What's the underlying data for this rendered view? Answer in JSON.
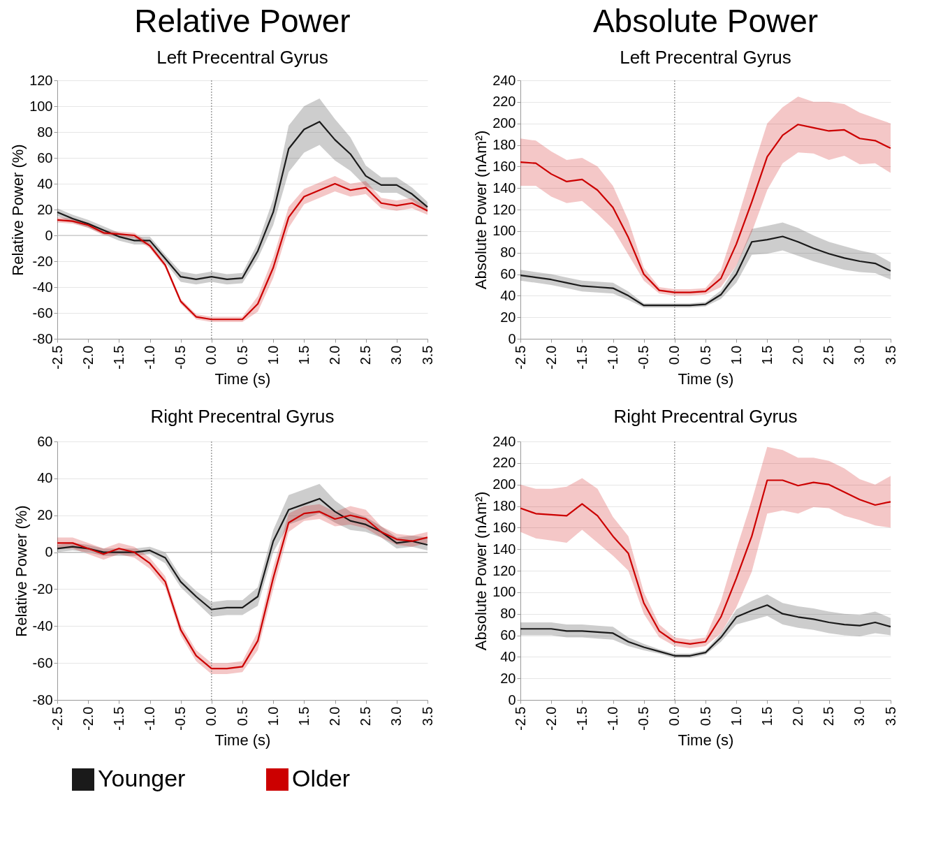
{
  "chart_data": [
    {
      "type": "line",
      "title": "Relative Power",
      "subtitle": "Left Precentral Gyrus",
      "xlabel": "Time (s)",
      "ylabel": "Relative Power (%)",
      "x": [
        -2.5,
        -2.25,
        -2,
        -1.75,
        -1.5,
        -1.25,
        -1,
        -0.75,
        -0.5,
        -0.25,
        0,
        0.25,
        0.5,
        0.75,
        1,
        1.25,
        1.5,
        1.75,
        2,
        2.25,
        2.5,
        2.75,
        3,
        3.25,
        3.5
      ],
      "series": [
        {
          "name": "Younger",
          "color": "#1a1a1a",
          "values": [
            18,
            13,
            9,
            4,
            -1,
            -4,
            -4,
            -18,
            -32,
            -34,
            -32,
            -34,
            -33,
            -12,
            18,
            67,
            82,
            88,
            74,
            63,
            46,
            39,
            39,
            32,
            22
          ],
          "upper": [
            21,
            16,
            12,
            7,
            2,
            -1,
            -1,
            -15,
            -28,
            -30,
            -28,
            -30,
            -29,
            -6,
            28,
            85,
            100,
            106,
            90,
            76,
            54,
            45,
            45,
            37,
            26
          ],
          "lower": [
            15,
            10,
            6,
            1,
            -4,
            -7,
            -7,
            -21,
            -36,
            -38,
            -36,
            -38,
            -37,
            -18,
            8,
            49,
            64,
            70,
            58,
            50,
            38,
            33,
            33,
            27,
            18
          ]
        },
        {
          "name": "Older",
          "color": "#cc0000",
          "values": [
            12,
            11,
            8,
            2,
            1,
            0,
            -8,
            -23,
            -51,
            -63,
            -65,
            -65,
            -65,
            -53,
            -25,
            14,
            30,
            35,
            40,
            35,
            37,
            25,
            23,
            25,
            19
          ],
          "upper": [
            14,
            13,
            10,
            4,
            3,
            2,
            -6,
            -21,
            -49,
            -61,
            -63,
            -63,
            -63,
            -47,
            -17,
            22,
            36,
            41,
            46,
            40,
            42,
            29,
            27,
            29,
            22
          ],
          "lower": [
            10,
            9,
            6,
            0,
            -1,
            -2,
            -10,
            -25,
            -53,
            -65,
            -67,
            -67,
            -67,
            -59,
            -33,
            6,
            24,
            29,
            34,
            30,
            32,
            21,
            19,
            21,
            16
          ]
        }
      ],
      "xlim": [
        -2.5,
        3.5
      ],
      "xticks": [
        -2.5,
        {
          "value": -2,
          "label": "-2.0"
        },
        -1.5,
        {
          "value": -1,
          "label": "-1.0"
        },
        -0.5,
        {
          "value": 0,
          "label": "0.0"
        },
        0.5,
        {
          "value": 1,
          "label": "1.0"
        },
        1.5,
        {
          "value": 2,
          "label": "2.0"
        },
        2.5,
        {
          "value": 3,
          "label": "3.0"
        },
        3.5
      ],
      "ylim": [
        -80,
        120
      ],
      "yticks": [
        -80,
        -60,
        -40,
        -20,
        0,
        20,
        40,
        60,
        80,
        100,
        120
      ],
      "ref_lines": [
        {
          "axis": "x",
          "value": 0,
          "color": "#888888",
          "line_style": "dotted"
        },
        {
          "axis": "y",
          "value": 0,
          "color": "#bbbbbb",
          "line_style": "solid"
        }
      ],
      "grid": "y",
      "legend": "bottom"
    },
    {
      "type": "line",
      "title": "Absolute Power",
      "subtitle": "Left Precentral Gyrus",
      "xlabel": "Time (s)",
      "ylabel": "Absolute Power (nAm²)",
      "x": [
        -2.5,
        -2.25,
        -2,
        -1.75,
        -1.5,
        -1.25,
        -1,
        -0.75,
        -0.5,
        -0.25,
        0,
        0.25,
        0.5,
        0.75,
        1,
        1.25,
        1.5,
        1.75,
        2,
        2.25,
        2.5,
        2.75,
        3,
        3.25,
        3.5
      ],
      "series": [
        {
          "name": "Younger",
          "color": "#1a1a1a",
          "values": [
            59,
            57,
            55,
            52,
            49,
            48,
            47,
            40,
            31,
            31,
            31,
            31,
            32,
            41,
            60,
            90,
            92,
            95,
            90,
            84,
            79,
            75,
            72,
            70,
            63
          ],
          "upper": [
            64,
            62,
            60,
            57,
            54,
            53,
            52,
            44,
            33,
            33,
            33,
            33,
            34,
            45,
            68,
            102,
            105,
            108,
            103,
            96,
            90,
            86,
            82,
            79,
            71
          ],
          "lower": [
            54,
            52,
            50,
            47,
            44,
            43,
            42,
            36,
            29,
            29,
            29,
            29,
            30,
            37,
            52,
            78,
            79,
            82,
            77,
            72,
            68,
            64,
            62,
            61,
            55
          ]
        },
        {
          "name": "Older",
          "color": "#cc0000",
          "values": [
            164,
            163,
            153,
            146,
            148,
            138,
            122,
            94,
            60,
            45,
            43,
            43,
            44,
            56,
            88,
            127,
            169,
            189,
            199,
            196,
            193,
            194,
            186,
            184,
            177
          ],
          "upper": [
            186,
            184,
            174,
            166,
            168,
            160,
            142,
            110,
            66,
            48,
            46,
            46,
            47,
            64,
            108,
            155,
            200,
            215,
            225,
            220,
            220,
            218,
            210,
            205,
            200
          ],
          "lower": [
            142,
            142,
            132,
            126,
            128,
            116,
            102,
            78,
            54,
            42,
            40,
            40,
            41,
            48,
            68,
            99,
            138,
            163,
            173,
            172,
            166,
            170,
            162,
            163,
            154
          ]
        }
      ],
      "xlim": [
        -2.5,
        3.5
      ],
      "xticks": [
        -2.5,
        {
          "value": -2,
          "label": "-2.0"
        },
        -1.5,
        {
          "value": -1,
          "label": "-1.0"
        },
        -0.5,
        {
          "value": 0,
          "label": "0.0"
        },
        0.5,
        {
          "value": 1,
          "label": "1.0"
        },
        1.5,
        {
          "value": 2,
          "label": "2.0"
        },
        2.5,
        {
          "value": 3,
          "label": "3.0"
        },
        3.5
      ],
      "ylim": [
        0,
        240
      ],
      "yticks": [
        0,
        20,
        40,
        60,
        80,
        100,
        120,
        140,
        160,
        180,
        200,
        220,
        240
      ],
      "ref_lines": [
        {
          "axis": "x",
          "value": 0,
          "color": "#888888",
          "line_style": "dotted"
        }
      ],
      "grid": "y",
      "legend": "bottom"
    },
    {
      "type": "line",
      "subtitle": "Right Precentral Gyrus",
      "xlabel": "Time (s)",
      "ylabel": "Relative Power (%)",
      "x": [
        -2.5,
        -2.25,
        -2,
        -1.75,
        -1.5,
        -1.25,
        -1,
        -0.75,
        -0.5,
        -0.25,
        0,
        0.25,
        0.5,
        0.75,
        1,
        1.25,
        1.5,
        1.75,
        2,
        2.25,
        2.5,
        2.75,
        3,
        3.25,
        3.5
      ],
      "series": [
        {
          "name": "Younger",
          "color": "#1a1a1a",
          "values": [
            2,
            3,
            2,
            0,
            0,
            0,
            1,
            -3,
            -16,
            -24,
            -31,
            -30,
            -30,
            -24,
            6,
            23,
            26,
            29,
            22,
            17,
            15,
            11,
            5,
            6,
            4
          ],
          "upper": [
            4,
            5,
            4,
            2,
            2,
            2,
            3,
            0,
            -13,
            -21,
            -27,
            -26,
            -26,
            -19,
            12,
            31,
            34,
            37,
            28,
            22,
            19,
            14,
            8,
            9,
            8
          ],
          "lower": [
            0,
            1,
            0,
            -2,
            -2,
            -2,
            -1,
            -6,
            -19,
            -27,
            -35,
            -34,
            -34,
            -29,
            0,
            15,
            18,
            21,
            16,
            12,
            11,
            8,
            2,
            3,
            1
          ]
        },
        {
          "name": "Older",
          "color": "#cc0000",
          "values": [
            5,
            5,
            2,
            -1,
            2,
            0,
            -6,
            -16,
            -42,
            -56,
            -63,
            -63,
            -62,
            -48,
            -14,
            16,
            21,
            22,
            18,
            20,
            18,
            11,
            7,
            6,
            8
          ],
          "upper": [
            8,
            8,
            5,
            2,
            5,
            3,
            -3,
            -13,
            -39,
            -53,
            -60,
            -60,
            -59,
            -43,
            -8,
            21,
            25,
            26,
            22,
            25,
            23,
            14,
            10,
            9,
            11
          ],
          "lower": [
            2,
            2,
            -1,
            -4,
            -1,
            -3,
            -9,
            -19,
            -45,
            -59,
            -66,
            -66,
            -65,
            -53,
            -20,
            11,
            17,
            18,
            14,
            15,
            13,
            8,
            4,
            3,
            5
          ]
        }
      ],
      "xlim": [
        -2.5,
        3.5
      ],
      "xticks": [
        -2.5,
        {
          "value": -2,
          "label": "-2.0"
        },
        -1.5,
        {
          "value": -1,
          "label": "-1.0"
        },
        -0.5,
        {
          "value": 0,
          "label": "0.0"
        },
        0.5,
        {
          "value": 1,
          "label": "1.0"
        },
        1.5,
        {
          "value": 2,
          "label": "2.0"
        },
        2.5,
        {
          "value": 3,
          "label": "3.0"
        },
        3.5
      ],
      "ylim": [
        -80,
        60
      ],
      "yticks": [
        -80,
        -60,
        -40,
        -20,
        0,
        20,
        40,
        60
      ],
      "ref_lines": [
        {
          "axis": "x",
          "value": 0,
          "color": "#888888",
          "line_style": "dotted"
        },
        {
          "axis": "y",
          "value": 0,
          "color": "#bbbbbb",
          "line_style": "solid"
        }
      ],
      "grid": "y",
      "legend": "bottom"
    },
    {
      "type": "line",
      "subtitle": "Right Precentral Gyrus",
      "xlabel": "Time (s)",
      "ylabel": "Absolute Power (nAm²)",
      "x": [
        -2.5,
        -2.25,
        -2,
        -1.75,
        -1.5,
        -1.25,
        -1,
        -0.75,
        -0.5,
        -0.25,
        0,
        0.25,
        0.5,
        0.75,
        1,
        1.25,
        1.5,
        1.75,
        2,
        2.25,
        2.5,
        2.75,
        3,
        3.25,
        3.5
      ],
      "series": [
        {
          "name": "Younger",
          "color": "#1a1a1a",
          "values": [
            66,
            66,
            66,
            64,
            64,
            63,
            62,
            54,
            49,
            45,
            41,
            41,
            44,
            58,
            77,
            83,
            88,
            80,
            77,
            75,
            72,
            70,
            69,
            72,
            68
          ],
          "upper": [
            72,
            72,
            72,
            70,
            70,
            69,
            68,
            58,
            52,
            47,
            43,
            43,
            46,
            62,
            84,
            92,
            98,
            90,
            87,
            85,
            82,
            80,
            79,
            82,
            76
          ],
          "lower": [
            60,
            60,
            60,
            58,
            58,
            57,
            56,
            50,
            46,
            43,
            39,
            39,
            42,
            54,
            70,
            74,
            78,
            70,
            67,
            65,
            62,
            60,
            59,
            62,
            60
          ]
        },
        {
          "name": "Older",
          "color": "#cc0000",
          "values": [
            178,
            173,
            172,
            171,
            182,
            171,
            152,
            136,
            90,
            64,
            54,
            52,
            54,
            77,
            113,
            152,
            204,
            204,
            199,
            202,
            200,
            193,
            186,
            181,
            184
          ],
          "upper": [
            200,
            196,
            196,
            198,
            206,
            196,
            170,
            152,
            100,
            70,
            58,
            56,
            58,
            92,
            140,
            185,
            235,
            232,
            225,
            225,
            222,
            215,
            205,
            200,
            208
          ],
          "lower": [
            156,
            150,
            148,
            146,
            158,
            146,
            134,
            120,
            80,
            58,
            50,
            48,
            50,
            62,
            86,
            119,
            173,
            176,
            173,
            179,
            178,
            171,
            167,
            162,
            160
          ]
        }
      ],
      "xlim": [
        -2.5,
        3.5
      ],
      "xticks": [
        -2.5,
        {
          "value": -2,
          "label": "-2.0"
        },
        -1.5,
        {
          "value": -1,
          "label": "-1.0"
        },
        -0.5,
        {
          "value": 0,
          "label": "0.0"
        },
        0.5,
        {
          "value": 1,
          "label": "1.0"
        },
        1.5,
        {
          "value": 2,
          "label": "2.0"
        },
        2.5,
        {
          "value": 3,
          "label": "3.0"
        },
        3.5
      ],
      "ylim": [
        0,
        240
      ],
      "yticks": [
        0,
        20,
        40,
        60,
        80,
        100,
        120,
        140,
        160,
        180,
        200,
        220,
        240
      ],
      "ref_lines": [
        {
          "axis": "x",
          "value": 0,
          "color": "#888888",
          "line_style": "dotted"
        }
      ],
      "grid": "y",
      "legend": "bottom"
    }
  ]
}
